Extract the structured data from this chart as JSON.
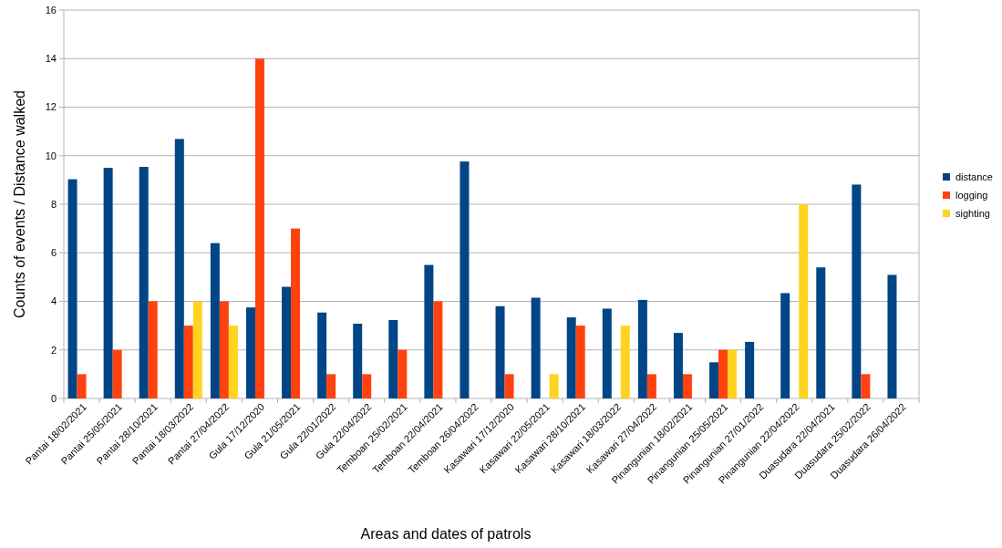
{
  "chart_data": {
    "type": "bar",
    "xlabel": "Areas and dates of patrols",
    "ylabel": "Counts of events / Distance walked",
    "categories": [
      "Pantai 18/02/2021",
      "Pantai 25/05/2021",
      "Pantai 28/10/2021",
      "Pantai 18/03/2022",
      "Pantai 27/04/2022",
      "Gula 17/12/2020",
      "Gula 21/05/2021",
      "Gula 22/01/2022",
      "Gula 22/04/2022",
      "Temboan 25/02/2021",
      "Temboan 22/04/2021",
      "Temboan 26/04/2022",
      "Kasawari 17/12/2020",
      "Kasawari 22/05/2021",
      "Kasawari 28/10/2021",
      "Kasawari 18/03/2022",
      "Kasawari 27/04/2022",
      "Pinangunian 18/02/2021",
      "Pinangunian 25/05/2021",
      "Pinangunian 27/01/2022",
      "Pinangunian 22/04/2022",
      "Duasudara 22/04/2021",
      "Duasudara 25/02/2022",
      "Duasudara 26/04/2022"
    ],
    "series": [
      {
        "name": "distance",
        "color": "#004586",
        "values": [
          9.03,
          9.5,
          9.54,
          10.69,
          6.4,
          3.75,
          4.6,
          3.54,
          3.08,
          3.23,
          5.5,
          9.76,
          3.8,
          4.15,
          3.34,
          3.7,
          4.06,
          2.7,
          1.49,
          2.33,
          4.34,
          5.4,
          8.81,
          5.09
        ]
      },
      {
        "name": "logging",
        "color": "#ff420e",
        "values": [
          1,
          2,
          4,
          3,
          4,
          14,
          7,
          1,
          1,
          2,
          4,
          null,
          1,
          null,
          3,
          null,
          1,
          1,
          2,
          null,
          null,
          null,
          1,
          null
        ]
      },
      {
        "name": "sighting",
        "color": "#ffd320",
        "values": [
          null,
          null,
          null,
          4,
          3,
          null,
          null,
          null,
          null,
          null,
          null,
          null,
          null,
          1,
          null,
          3,
          null,
          null,
          2,
          null,
          8,
          null,
          null,
          null
        ]
      }
    ],
    "ylim": [
      0,
      16
    ],
    "yticks": [
      0,
      2,
      4,
      6,
      8,
      10,
      12,
      14,
      16
    ],
    "grid": "y",
    "legend": "right"
  }
}
